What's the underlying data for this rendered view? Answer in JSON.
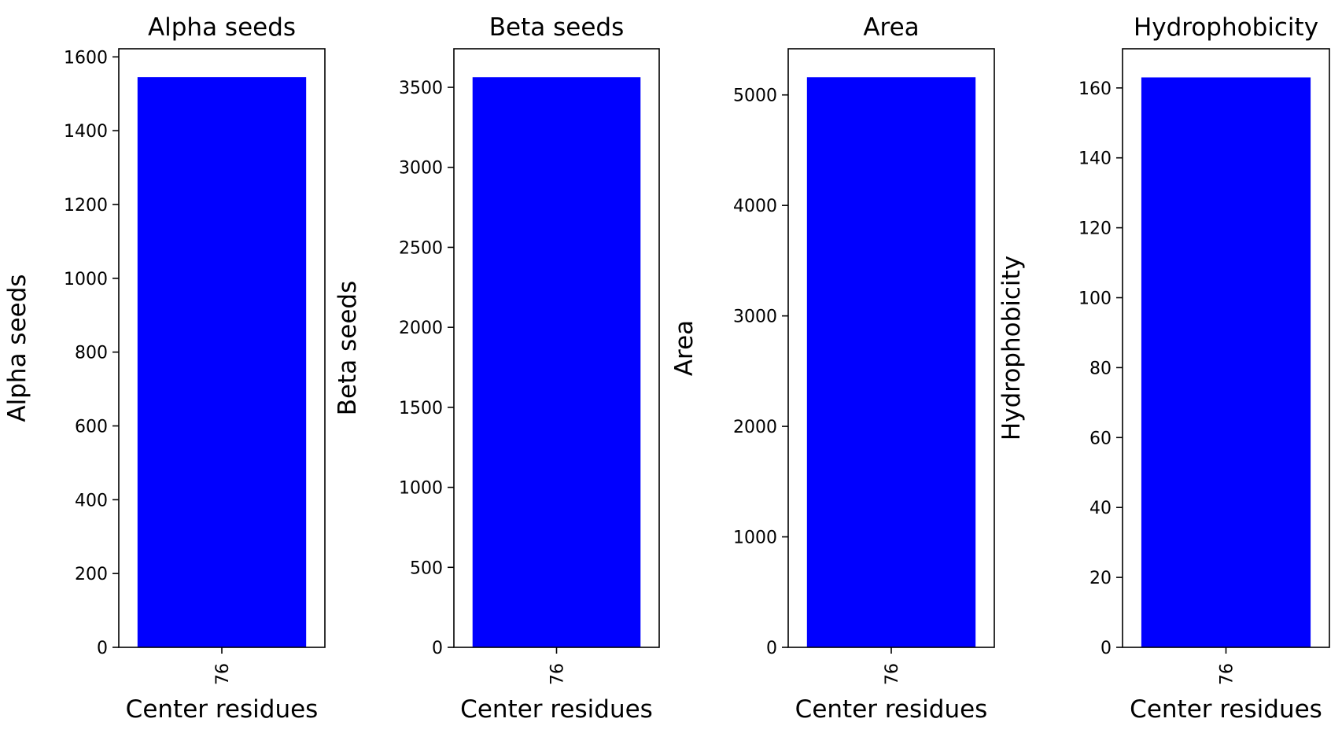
{
  "chart_data": [
    {
      "type": "bar",
      "title": "Alpha seeds",
      "xlabel": "Center residues",
      "ylabel": "Alpha seeds",
      "categories": [
        "76"
      ],
      "values": [
        1545
      ],
      "ylim": [
        0,
        1622
      ],
      "yticks": [
        0,
        200,
        400,
        600,
        800,
        1000,
        1200,
        1400,
        1600
      ],
      "bar_color": "#0000ff"
    },
    {
      "type": "bar",
      "title": "Beta seeds",
      "xlabel": "Center residues",
      "ylabel": "Beta seeds",
      "categories": [
        "76"
      ],
      "values": [
        3563
      ],
      "ylim": [
        0,
        3741
      ],
      "yticks": [
        0,
        500,
        1000,
        1500,
        2000,
        2500,
        3000,
        3500
      ],
      "bar_color": "#0000ff"
    },
    {
      "type": "bar",
      "title": "Area",
      "xlabel": "Center residues",
      "ylabel": "Area",
      "categories": [
        "76"
      ],
      "values": [
        5160
      ],
      "ylim": [
        0,
        5418
      ],
      "yticks": [
        0,
        1000,
        2000,
        3000,
        4000,
        5000
      ],
      "bar_color": "#0000ff"
    },
    {
      "type": "bar",
      "title": "Hydrophobicity",
      "xlabel": "Center residues",
      "ylabel": "Hydrophobicity",
      "categories": [
        "76"
      ],
      "values": [
        163
      ],
      "ylim": [
        0,
        171.2
      ],
      "yticks": [
        0,
        20,
        40,
        60,
        80,
        100,
        120,
        140,
        160
      ],
      "bar_color": "#0000ff"
    }
  ]
}
